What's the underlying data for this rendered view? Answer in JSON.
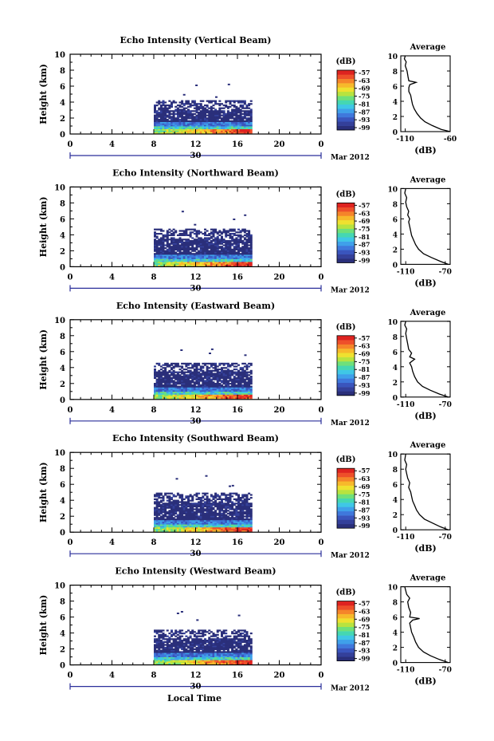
{
  "figure": {
    "xlabel": "Local Time",
    "date_label": "Mar 2012",
    "date_day": "30",
    "colorbar_unit": "(dB)",
    "avg_title": "Average",
    "avg_xlabel": "(dB)"
  },
  "chart_data": [
    {
      "type": "heatmap",
      "title": "Echo Intensity (Vertical Beam)",
      "ylabel": "Height (km)",
      "xlabel": "Local Time",
      "x_ticks": [
        "0",
        "4",
        "8",
        "12",
        "16",
        "20",
        "0"
      ],
      "y_ticks": [
        "0",
        "2",
        "4",
        "6",
        "8",
        "10"
      ],
      "xlim": [
        0,
        24
      ],
      "ylim": [
        0,
        10
      ],
      "colorbar": {
        "label": "(dB)",
        "ticks": [
          "-57",
          "-63",
          "-69",
          "-75",
          "-81",
          "-87",
          "-93",
          "-99"
        ]
      },
      "data_extent": {
        "time_start": 8,
        "time_end": 17.3,
        "max_height_km": 4.1
      },
      "average_profile": {
        "title": "Average",
        "xlabel": "(dB)",
        "x_ticks": [
          "-110",
          "-60"
        ],
        "xlim": [
          -115,
          -60
        ],
        "points": [
          [
            -60,
            0
          ],
          [
            -70,
            0.3
          ],
          [
            -80,
            0.8
          ],
          [
            -88,
            1.3
          ],
          [
            -93,
            1.8
          ],
          [
            -97,
            2.4
          ],
          [
            -100,
            3.0
          ],
          [
            -102,
            3.6
          ],
          [
            -103,
            4.2
          ],
          [
            -104,
            4.8
          ],
          [
            -106,
            5.3
          ],
          [
            -106,
            5.8
          ],
          [
            -105,
            6.2
          ],
          [
            -98,
            6.5
          ],
          [
            -106,
            6.7
          ],
          [
            -107,
            7.3
          ],
          [
            -108,
            8.0
          ],
          [
            -110,
            8.7
          ],
          [
            -109,
            9.2
          ],
          [
            -111,
            9.6
          ],
          [
            -110,
            10
          ]
        ]
      }
    },
    {
      "type": "heatmap",
      "title": "Echo Intensity (Northward Beam)",
      "ylabel": "Height (km)",
      "xlabel": "Local Time",
      "x_ticks": [
        "0",
        "4",
        "8",
        "12",
        "16",
        "20",
        "0"
      ],
      "y_ticks": [
        "0",
        "2",
        "4",
        "6",
        "8",
        "10"
      ],
      "xlim": [
        0,
        24
      ],
      "ylim": [
        0,
        10
      ],
      "colorbar": {
        "label": "(dB)",
        "ticks": [
          "-57",
          "-63",
          "-69",
          "-75",
          "-81",
          "-87",
          "-93",
          "-99"
        ]
      },
      "data_extent": {
        "time_start": 8,
        "time_end": 17.3,
        "max_height_km": 4.7
      },
      "average_profile": {
        "title": "Average",
        "xlabel": "(dB)",
        "x_ticks": [
          "-110",
          "-70"
        ],
        "xlim": [
          -115,
          -65
        ],
        "points": [
          [
            -67,
            0
          ],
          [
            -75,
            0.4
          ],
          [
            -84,
            0.9
          ],
          [
            -92,
            1.4
          ],
          [
            -97,
            2.0
          ],
          [
            -100,
            2.6
          ],
          [
            -102,
            3.2
          ],
          [
            -104,
            3.8
          ],
          [
            -105,
            4.4
          ],
          [
            -106,
            5.0
          ],
          [
            -107,
            5.6
          ],
          [
            -106,
            6.0
          ],
          [
            -108,
            6.5
          ],
          [
            -107,
            7.0
          ],
          [
            -109,
            7.6
          ],
          [
            -110,
            8.2
          ],
          [
            -109,
            8.8
          ],
          [
            -111,
            9.4
          ],
          [
            -110,
            10
          ]
        ]
      }
    },
    {
      "type": "heatmap",
      "title": "Echo Intensity (Eastward Beam)",
      "ylabel": "Height (km)",
      "xlabel": "Local Time",
      "x_ticks": [
        "0",
        "4",
        "8",
        "12",
        "16",
        "20",
        "0"
      ],
      "y_ticks": [
        "0",
        "2",
        "4",
        "6",
        "8",
        "10"
      ],
      "xlim": [
        0,
        24
      ],
      "ylim": [
        0,
        10
      ],
      "colorbar": {
        "label": "(dB)",
        "ticks": [
          "-57",
          "-63",
          "-69",
          "-75",
          "-81",
          "-87",
          "-93",
          "-99"
        ]
      },
      "data_extent": {
        "time_start": 8,
        "time_end": 17.3,
        "max_height_km": 4.6
      },
      "average_profile": {
        "title": "Average",
        "xlabel": "(dB)",
        "x_ticks": [
          "-110",
          "-70"
        ],
        "xlim": [
          -115,
          -65
        ],
        "points": [
          [
            -67,
            0
          ],
          [
            -76,
            0.4
          ],
          [
            -85,
            0.9
          ],
          [
            -93,
            1.4
          ],
          [
            -98,
            2.0
          ],
          [
            -101,
            2.7
          ],
          [
            -103,
            3.4
          ],
          [
            -104,
            4.0
          ],
          [
            -106,
            4.5
          ],
          [
            -101,
            5.0
          ],
          [
            -106,
            5.3
          ],
          [
            -104,
            5.8
          ],
          [
            -107,
            6.3
          ],
          [
            -108,
            7.0
          ],
          [
            -109,
            7.7
          ],
          [
            -110,
            8.4
          ],
          [
            -109,
            9.0
          ],
          [
            -111,
            9.5
          ],
          [
            -110,
            10
          ]
        ]
      }
    },
    {
      "type": "heatmap",
      "title": "Echo Intensity (Southward Beam)",
      "ylabel": "Height (km)",
      "xlabel": "Local Time",
      "x_ticks": [
        "0",
        "4",
        "8",
        "12",
        "16",
        "20",
        "0"
      ],
      "y_ticks": [
        "0",
        "2",
        "4",
        "6",
        "8",
        "10"
      ],
      "xlim": [
        0,
        24
      ],
      "ylim": [
        0,
        10
      ],
      "colorbar": {
        "label": "(dB)",
        "ticks": [
          "-57",
          "-63",
          "-69",
          "-75",
          "-81",
          "-87",
          "-93",
          "-99"
        ]
      },
      "data_extent": {
        "time_start": 8,
        "time_end": 17.3,
        "max_height_km": 4.8
      },
      "average_profile": {
        "title": "Average",
        "xlabel": "(dB)",
        "x_ticks": [
          "-110",
          "-70"
        ],
        "xlim": [
          -115,
          -65
        ],
        "points": [
          [
            -67,
            0
          ],
          [
            -75,
            0.4
          ],
          [
            -83,
            0.9
          ],
          [
            -91,
            1.4
          ],
          [
            -96,
            2.0
          ],
          [
            -99,
            2.6
          ],
          [
            -101,
            3.2
          ],
          [
            -103,
            3.8
          ],
          [
            -104,
            4.4
          ],
          [
            -105,
            5.0
          ],
          [
            -107,
            5.6
          ],
          [
            -106,
            6.2
          ],
          [
            -108,
            6.8
          ],
          [
            -109,
            7.4
          ],
          [
            -110,
            8.0
          ],
          [
            -109,
            8.6
          ],
          [
            -111,
            9.2
          ],
          [
            -110,
            10
          ]
        ]
      }
    },
    {
      "type": "heatmap",
      "title": "Echo Intensity (Westward Beam)",
      "ylabel": "Height (km)",
      "xlabel": "Local Time",
      "x_ticks": [
        "0",
        "4",
        "8",
        "12",
        "16",
        "20",
        "0"
      ],
      "y_ticks": [
        "0",
        "2",
        "4",
        "6",
        "8",
        "10"
      ],
      "xlim": [
        0,
        24
      ],
      "ylim": [
        0,
        10
      ],
      "colorbar": {
        "label": "(dB)",
        "ticks": [
          "-57",
          "-63",
          "-69",
          "-75",
          "-81",
          "-87",
          "-93",
          "-99"
        ]
      },
      "data_extent": {
        "time_start": 8,
        "time_end": 17.3,
        "max_height_km": 4.4
      },
      "average_profile": {
        "title": "Average",
        "xlabel": "(dB)",
        "x_ticks": [
          "-110",
          "-70"
        ],
        "xlim": [
          -115,
          -65
        ],
        "points": [
          [
            -67,
            0
          ],
          [
            -76,
            0.4
          ],
          [
            -85,
            0.9
          ],
          [
            -92,
            1.4
          ],
          [
            -97,
            2.0
          ],
          [
            -100,
            2.7
          ],
          [
            -102,
            3.4
          ],
          [
            -104,
            4.0
          ],
          [
            -105,
            4.6
          ],
          [
            -106,
            5.2
          ],
          [
            -103,
            5.6
          ],
          [
            -96,
            5.8
          ],
          [
            -106,
            6.0
          ],
          [
            -105,
            6.6
          ],
          [
            -107,
            7.3
          ],
          [
            -108,
            8.0
          ],
          [
            -106,
            8.5
          ],
          [
            -109,
            9.0
          ],
          [
            -110,
            9.5
          ],
          [
            -111,
            10
          ]
        ]
      }
    }
  ]
}
